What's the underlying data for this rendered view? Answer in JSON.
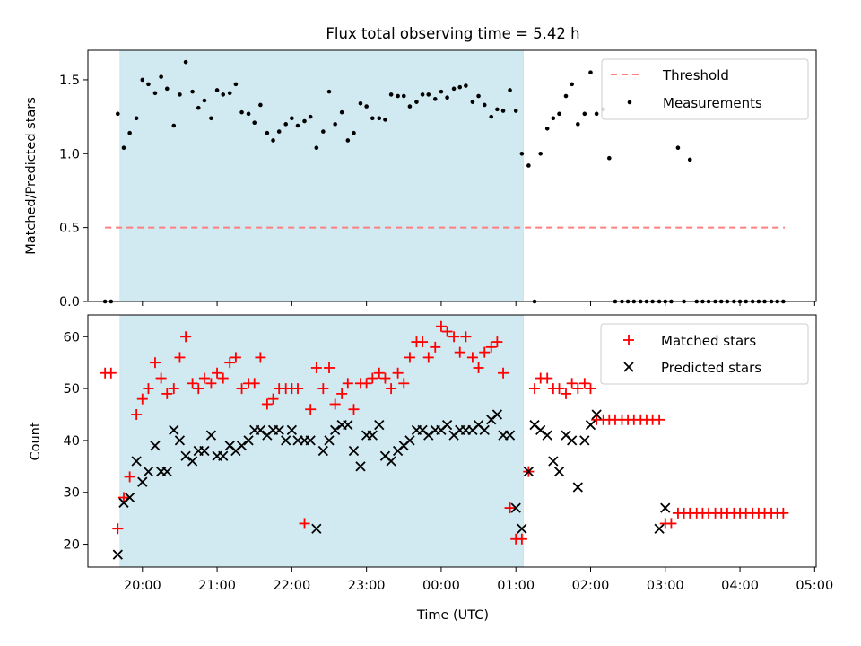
{
  "figure": {
    "title": "Flux total observing time = 5.42 h"
  },
  "chart_data": [
    {
      "type": "scatter",
      "title": "Flux total observing time = 5.42 h",
      "xlabel": "",
      "ylabel": "Matched/Predicted stars",
      "x_unit": "hours since 19:00 UTC (axis shows clock time)",
      "xlim": [
        0.27,
        10.02
      ],
      "ylim": [
        0,
        1.7
      ],
      "yticks": [
        "0.0",
        "0.5",
        "1.0",
        "1.5"
      ],
      "shaded_interval": {
        "start": "19:42",
        "end": "01:06",
        "color": "#add8e6"
      },
      "legend": {
        "position": "top-right",
        "entries": [
          "Threshold",
          "Measurements"
        ]
      },
      "threshold": {
        "name": "Threshold",
        "value": 0.5,
        "x_start": "19:30",
        "x_end": "04:36",
        "color": "#ff7f7f"
      },
      "measurements": {
        "name": "Measurements",
        "color": "#000000",
        "points": [
          [
            0.5,
            0.0
          ],
          [
            0.58,
            0.0
          ],
          [
            0.67,
            1.27
          ],
          [
            0.75,
            1.04
          ],
          [
            0.83,
            1.14
          ],
          [
            0.92,
            1.24
          ],
          [
            1.0,
            1.5
          ],
          [
            1.08,
            1.47
          ],
          [
            1.17,
            1.41
          ],
          [
            1.25,
            1.52
          ],
          [
            1.33,
            1.44
          ],
          [
            1.42,
            1.19
          ],
          [
            1.5,
            1.4
          ],
          [
            1.58,
            1.62
          ],
          [
            1.67,
            1.42
          ],
          [
            1.75,
            1.31
          ],
          [
            1.83,
            1.36
          ],
          [
            1.92,
            1.24
          ],
          [
            2.0,
            1.43
          ],
          [
            2.08,
            1.4
          ],
          [
            2.17,
            1.41
          ],
          [
            2.25,
            1.47
          ],
          [
            2.33,
            1.28
          ],
          [
            2.42,
            1.27
          ],
          [
            2.5,
            1.21
          ],
          [
            2.58,
            1.33
          ],
          [
            2.67,
            1.14
          ],
          [
            2.75,
            1.09
          ],
          [
            2.83,
            1.15
          ],
          [
            2.92,
            1.2
          ],
          [
            3.0,
            1.24
          ],
          [
            3.08,
            1.19
          ],
          [
            3.17,
            1.22
          ],
          [
            3.25,
            1.25
          ],
          [
            3.33,
            1.04
          ],
          [
            3.42,
            1.15
          ],
          [
            3.5,
            1.42
          ],
          [
            3.58,
            1.2
          ],
          [
            3.67,
            1.28
          ],
          [
            3.75,
            1.09
          ],
          [
            3.83,
            1.14
          ],
          [
            3.92,
            1.34
          ],
          [
            4.0,
            1.32
          ],
          [
            4.08,
            1.24
          ],
          [
            4.17,
            1.24
          ],
          [
            4.25,
            1.23
          ],
          [
            4.33,
            1.4
          ],
          [
            4.42,
            1.39
          ],
          [
            4.5,
            1.39
          ],
          [
            4.58,
            1.32
          ],
          [
            4.67,
            1.35
          ],
          [
            4.75,
            1.4
          ],
          [
            4.83,
            1.4
          ],
          [
            4.92,
            1.37
          ],
          [
            5.0,
            1.42
          ],
          [
            5.08,
            1.38
          ],
          [
            5.17,
            1.44
          ],
          [
            5.25,
            1.45
          ],
          [
            5.33,
            1.46
          ],
          [
            5.42,
            1.35
          ],
          [
            5.5,
            1.39
          ],
          [
            5.58,
            1.33
          ],
          [
            5.67,
            1.25
          ],
          [
            5.75,
            1.3
          ],
          [
            5.83,
            1.29
          ],
          [
            5.92,
            1.43
          ],
          [
            6.0,
            1.29
          ],
          [
            6.08,
            1.0
          ],
          [
            6.17,
            0.92
          ],
          [
            6.25,
            0.0
          ],
          [
            6.33,
            1.0
          ],
          [
            6.42,
            1.17
          ],
          [
            6.5,
            1.24
          ],
          [
            6.58,
            1.27
          ],
          [
            6.67,
            1.39
          ],
          [
            6.75,
            1.47
          ],
          [
            6.83,
            1.2
          ],
          [
            6.92,
            1.27
          ],
          [
            7.0,
            1.55
          ],
          [
            7.08,
            1.27
          ],
          [
            7.17,
            1.3
          ],
          [
            7.25,
            0.97
          ],
          [
            7.33,
            0.0
          ],
          [
            7.42,
            0.0
          ],
          [
            7.5,
            0.0
          ],
          [
            7.58,
            0.0
          ],
          [
            7.67,
            0.0
          ],
          [
            7.75,
            0.0
          ],
          [
            7.83,
            0.0
          ],
          [
            7.92,
            0.0
          ],
          [
            8.0,
            0.0
          ],
          [
            8.08,
            0.0
          ],
          [
            8.17,
            1.04
          ],
          [
            8.25,
            0.0
          ],
          [
            8.33,
            0.96
          ],
          [
            8.42,
            0.0
          ],
          [
            8.5,
            0.0
          ],
          [
            8.58,
            0.0
          ],
          [
            8.67,
            0.0
          ],
          [
            8.75,
            0.0
          ],
          [
            8.83,
            0.0
          ],
          [
            8.92,
            0.0
          ],
          [
            9.0,
            0.0
          ],
          [
            9.08,
            0.0
          ],
          [
            9.17,
            0.0
          ],
          [
            9.25,
            0.0
          ],
          [
            9.33,
            0.0
          ],
          [
            9.42,
            0.0
          ],
          [
            9.5,
            0.0
          ],
          [
            9.58,
            0.0
          ]
        ]
      }
    },
    {
      "type": "scatter",
      "title": "",
      "xlabel": "Time (UTC)",
      "ylabel": "Count",
      "x_unit": "hours since 19:00 UTC (axis shows clock time)",
      "xlim": [
        0.27,
        10.02
      ],
      "ylim": [
        15.6,
        64.2
      ],
      "yticks": [
        "20",
        "30",
        "40",
        "50",
        "60"
      ],
      "xticks": [
        {
          "value": 1,
          "label": "20:00"
        },
        {
          "value": 2,
          "label": "21:00"
        },
        {
          "value": 3,
          "label": "22:00"
        },
        {
          "value": 4,
          "label": "23:00"
        },
        {
          "value": 5,
          "label": "00:00"
        },
        {
          "value": 6,
          "label": "01:00"
        },
        {
          "value": 7,
          "label": "02:00"
        },
        {
          "value": 8,
          "label": "03:00"
        },
        {
          "value": 9,
          "label": "04:00"
        },
        {
          "value": 10,
          "label": "05:00"
        }
      ],
      "shaded_interval": {
        "start": "19:42",
        "end": "01:06",
        "color": "#add8e6"
      },
      "legend": {
        "position": "top-right",
        "entries": [
          "Matched stars",
          "Predicted stars"
        ]
      },
      "x": [
        0.5,
        0.58,
        0.67,
        0.75,
        0.83,
        0.92,
        1.0,
        1.08,
        1.17,
        1.25,
        1.33,
        1.42,
        1.5,
        1.58,
        1.67,
        1.75,
        1.83,
        1.92,
        2.0,
        2.08,
        2.17,
        2.25,
        2.33,
        2.42,
        2.5,
        2.58,
        2.67,
        2.75,
        2.83,
        2.92,
        3.0,
        3.08,
        3.17,
        3.25,
        3.33,
        3.42,
        3.5,
        3.58,
        3.67,
        3.75,
        3.83,
        3.92,
        4.0,
        4.08,
        4.17,
        4.25,
        4.33,
        4.42,
        4.5,
        4.58,
        4.67,
        4.75,
        4.83,
        4.92,
        5.0,
        5.08,
        5.17,
        5.25,
        5.33,
        5.42,
        5.5,
        5.58,
        5.67,
        5.75,
        5.83,
        5.92,
        6.0,
        6.08,
        6.17,
        6.25,
        6.33,
        6.42,
        6.5,
        6.58,
        6.67,
        6.75,
        6.83,
        6.92,
        7.0,
        7.08,
        7.17,
        7.25,
        7.33,
        7.42,
        7.5,
        7.58,
        7.67,
        7.75,
        7.83,
        7.92,
        8.0,
        8.08,
        8.17,
        8.25,
        8.33,
        8.42,
        8.5,
        8.58,
        8.67,
        8.75,
        8.83,
        8.92,
        9.0,
        9.08,
        9.17,
        9.25,
        9.33,
        9.42,
        9.5,
        9.58
      ],
      "series": [
        {
          "name": "Matched stars",
          "color": "#ff0000",
          "marker": "plus",
          "values": [
            53,
            53,
            23,
            29,
            33,
            45,
            48,
            50,
            55,
            52,
            49,
            50,
            56,
            60,
            51,
            50,
            52,
            51,
            53,
            52,
            55,
            56,
            50,
            51,
            51,
            56,
            47,
            48,
            50,
            50,
            50,
            50,
            24,
            46,
            54,
            50,
            54,
            47,
            49,
            51,
            46,
            51,
            51,
            52,
            53,
            52,
            50,
            53,
            51,
            56,
            59,
            59,
            56,
            58,
            62,
            61,
            60,
            57,
            60,
            56,
            54,
            57,
            58,
            59,
            53,
            27,
            21,
            21,
            34,
            50,
            52,
            52,
            50,
            50,
            49,
            51,
            50,
            51,
            50,
            44,
            44,
            44,
            44,
            44,
            44,
            44,
            44,
            44,
            44,
            44,
            24,
            24,
            26,
            26,
            26,
            26,
            26,
            26,
            26,
            26,
            26,
            26,
            26,
            26,
            26,
            26,
            26,
            26,
            26,
            26
          ]
        },
        {
          "name": "Predicted stars",
          "color": "#000000",
          "marker": "x",
          "values": [
            null,
            null,
            18,
            28,
            29,
            36,
            32,
            34,
            39,
            34,
            34,
            42,
            40,
            37,
            36,
            38,
            38,
            41,
            37,
            37,
            39,
            38,
            39,
            40,
            42,
            42,
            41,
            42,
            42,
            40,
            42,
            40,
            40,
            40,
            23,
            38,
            40,
            42,
            43,
            43,
            38,
            35,
            41,
            41,
            43,
            37,
            36,
            38,
            39,
            40,
            42,
            42,
            41,
            42,
            42,
            43,
            41,
            42,
            42,
            42,
            43,
            42,
            44,
            45,
            41,
            41,
            27,
            23,
            34,
            43,
            42,
            41,
            36,
            34,
            41,
            40,
            31,
            40,
            43,
            45,
            null,
            null,
            null,
            null,
            null,
            null,
            null,
            null,
            null,
            23,
            27,
            null,
            null,
            null,
            null,
            null,
            null,
            null,
            null,
            null,
            null,
            null,
            null,
            null,
            null,
            null,
            null,
            null,
            null,
            null
          ]
        }
      ]
    }
  ]
}
